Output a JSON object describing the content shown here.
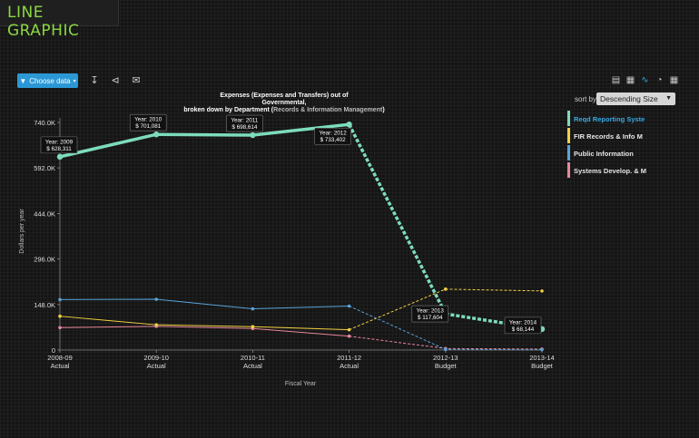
{
  "app": {
    "title": "LINE GRAPHIC"
  },
  "toolbar": {
    "choose_data_label": "Choose data",
    "icons": [
      "filter-icon",
      "download-icon",
      "share-icon",
      "email-icon"
    ],
    "chart_type_icons": [
      "area-chart-icon",
      "stacked-chart-icon",
      "line-chart-icon",
      "pie-chart-icon",
      "table-icon"
    ]
  },
  "sort": {
    "label": "sort by",
    "selected": "Descending Size"
  },
  "legend": {
    "items": [
      {
        "label": "Reqd Reporting Syste",
        "color": "#7ddcbd",
        "text_color": "#3aa9e0"
      },
      {
        "label": "FIR Records & Info M",
        "color": "#f2d143",
        "text_color": "#e6e6e6"
      },
      {
        "label": "Public Information",
        "color": "#5aa3d9",
        "text_color": "#e6e6e6"
      },
      {
        "label": "Systems Develop. & M",
        "color": "#e8879a",
        "text_color": "#e6e6e6"
      }
    ]
  },
  "chart_data": {
    "type": "line",
    "title_line1": "Expenses (Expenses and Transfers) out of",
    "title_line2": "Governmental,",
    "title_line3_prefix": "broken down by Department (",
    "title_line3_highlight": "Records & Information Management",
    "title_line3_suffix": ")",
    "xlabel": "Fiscal Year",
    "ylabel": "Dollars per year",
    "ylim": [
      0,
      740000
    ],
    "yticks": [
      {
        "value": 0,
        "label": "0"
      },
      {
        "value": 148000,
        "label": "148.0K"
      },
      {
        "value": 296000,
        "label": "296.0K"
      },
      {
        "value": 444000,
        "label": "444.0K"
      },
      {
        "value": 592000,
        "label": "592.0K"
      },
      {
        "value": 740000,
        "label": "740.0K"
      }
    ],
    "categories": [
      {
        "year": "2008-09",
        "type": "Actual"
      },
      {
        "year": "2009-10",
        "type": "Actual"
      },
      {
        "year": "2010-11",
        "type": "Actual"
      },
      {
        "year": "2011-12",
        "type": "Actual"
      },
      {
        "year": "2012-13",
        "type": "Budget"
      },
      {
        "year": "2013-14",
        "type": "Budget"
      }
    ],
    "actual_count": 4,
    "series": [
      {
        "name": "Reqd Reporting Syste",
        "color": "#7ddcbd",
        "width": 3.5,
        "values": [
          628311,
          701081,
          698614,
          733402,
          117604,
          68144
        ]
      },
      {
        "name": "FIR Records & Info M",
        "color": "#f2d143",
        "width": 1,
        "values": [
          110000,
          82000,
          76000,
          66000,
          198000,
          192000
        ]
      },
      {
        "name": "Public Information",
        "color": "#5aa3d9",
        "width": 1,
        "values": [
          164000,
          165000,
          134000,
          143000,
          2000,
          1000
        ]
      },
      {
        "name": "Systems Develop. & M",
        "color": "#e8879a",
        "width": 1,
        "values": [
          73000,
          77000,
          70000,
          45000,
          5000,
          3000
        ]
      }
    ],
    "annotations": [
      {
        "series": 0,
        "index": 0,
        "line1": "Year: 2009",
        "line2": "$ 628,311"
      },
      {
        "series": 0,
        "index": 1,
        "line1": "Year: 2010",
        "line2": "$ 701,081"
      },
      {
        "series": 0,
        "index": 2,
        "line1": "Year: 2011",
        "line2": "$ 698,614"
      },
      {
        "series": 0,
        "index": 3,
        "line1": "Year: 2012",
        "line2": "$ 733,402"
      },
      {
        "series": 0,
        "index": 4,
        "line1": "Year: 2013",
        "line2": "$ 117,604"
      },
      {
        "series": 0,
        "index": 5,
        "line1": "Year: 2014",
        "line2": "$ 68,144"
      }
    ]
  }
}
